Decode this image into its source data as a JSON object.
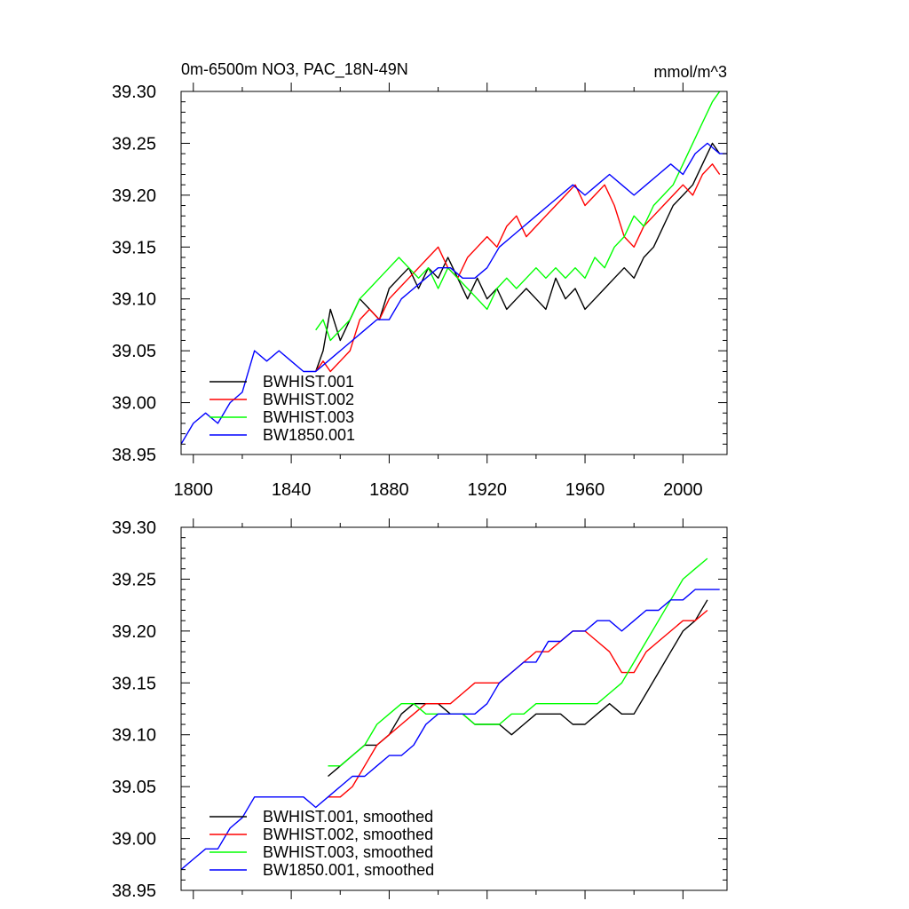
{
  "chart_data": [
    {
      "type": "line",
      "title_left": "0m-6500m NO3, PAC_18N-49N",
      "title_right": "mmol/m^3",
      "xlabel": "",
      "ylabel": "",
      "xlim": [
        1795,
        2018
      ],
      "ylim": [
        38.95,
        39.3
      ],
      "x_ticks": [
        1800,
        1840,
        1880,
        1920,
        1960,
        2000
      ],
      "x_tick_labels": [
        "1800",
        "1840",
        "1880",
        "1920",
        "1960",
        "2000"
      ],
      "y_ticks": [
        38.95,
        39.0,
        39.05,
        39.1,
        39.15,
        39.2,
        39.25,
        39.3
      ],
      "y_tick_labels": [
        "38.95",
        "39.00",
        "39.05",
        "39.10",
        "39.15",
        "39.20",
        "39.25",
        "39.30"
      ],
      "legend_position": "bottom-left",
      "series": [
        {
          "name": "BWHIST.001",
          "color": "#000000",
          "x": [
            1850,
            1853,
            1856,
            1860,
            1864,
            1868,
            1872,
            1876,
            1880,
            1884,
            1888,
            1892,
            1896,
            1900,
            1904,
            1908,
            1912,
            1916,
            1920,
            1924,
            1928,
            1932,
            1936,
            1940,
            1944,
            1948,
            1952,
            1956,
            1960,
            1964,
            1968,
            1972,
            1976,
            1980,
            1984,
            1988,
            1992,
            1996,
            2000,
            2004,
            2008,
            2012,
            2015
          ],
          "y": [
            39.03,
            39.05,
            39.09,
            39.06,
            39.08,
            39.1,
            39.09,
            39.08,
            39.11,
            39.12,
            39.13,
            39.11,
            39.13,
            39.12,
            39.14,
            39.12,
            39.1,
            39.12,
            39.1,
            39.11,
            39.09,
            39.1,
            39.11,
            39.1,
            39.09,
            39.12,
            39.1,
            39.11,
            39.09,
            39.1,
            39.11,
            39.12,
            39.13,
            39.12,
            39.14,
            39.15,
            39.17,
            39.19,
            39.2,
            39.21,
            39.23,
            39.25,
            39.24
          ]
        },
        {
          "name": "BWHIST.002",
          "color": "#ff0000",
          "x": [
            1850,
            1853,
            1856,
            1860,
            1864,
            1868,
            1872,
            1876,
            1880,
            1884,
            1888,
            1892,
            1896,
            1900,
            1904,
            1908,
            1912,
            1916,
            1920,
            1924,
            1928,
            1932,
            1936,
            1940,
            1944,
            1948,
            1952,
            1956,
            1960,
            1964,
            1968,
            1972,
            1976,
            1980,
            1984,
            1988,
            1992,
            1996,
            2000,
            2004,
            2008,
            2012,
            2015
          ],
          "y": [
            39.03,
            39.04,
            39.03,
            39.04,
            39.05,
            39.08,
            39.09,
            39.08,
            39.1,
            39.11,
            39.12,
            39.13,
            39.14,
            39.15,
            39.13,
            39.12,
            39.14,
            39.15,
            39.16,
            39.15,
            39.17,
            39.18,
            39.16,
            39.17,
            39.18,
            39.19,
            39.2,
            39.21,
            39.19,
            39.2,
            39.21,
            39.19,
            39.16,
            39.15,
            39.17,
            39.18,
            39.19,
            39.2,
            39.21,
            39.2,
            39.22,
            39.23,
            39.22
          ]
        },
        {
          "name": "BWHIST.003",
          "color": "#00ff00",
          "x": [
            1850,
            1853,
            1856,
            1860,
            1864,
            1868,
            1872,
            1876,
            1880,
            1884,
            1888,
            1892,
            1896,
            1900,
            1904,
            1908,
            1912,
            1916,
            1920,
            1924,
            1928,
            1932,
            1936,
            1940,
            1944,
            1948,
            1952,
            1956,
            1960,
            1964,
            1968,
            1972,
            1976,
            1980,
            1984,
            1988,
            1992,
            1996,
            2000,
            2004,
            2008,
            2012,
            2015
          ],
          "y": [
            39.07,
            39.08,
            39.06,
            39.07,
            39.08,
            39.1,
            39.11,
            39.12,
            39.13,
            39.14,
            39.13,
            39.12,
            39.13,
            39.11,
            39.13,
            39.12,
            39.11,
            39.1,
            39.09,
            39.11,
            39.12,
            39.11,
            39.12,
            39.13,
            39.12,
            39.13,
            39.12,
            39.13,
            39.12,
            39.14,
            39.13,
            39.15,
            39.16,
            39.18,
            39.17,
            39.19,
            39.2,
            39.21,
            39.23,
            39.25,
            39.27,
            39.29,
            39.3
          ]
        },
        {
          "name": "BW1850.001",
          "color": "#0000ff",
          "x": [
            1795,
            1800,
            1805,
            1810,
            1815,
            1820,
            1825,
            1830,
            1835,
            1840,
            1845,
            1850,
            1855,
            1860,
            1865,
            1870,
            1875,
            1880,
            1885,
            1890,
            1895,
            1900,
            1905,
            1910,
            1915,
            1920,
            1925,
            1930,
            1935,
            1940,
            1945,
            1950,
            1955,
            1960,
            1965,
            1970,
            1975,
            1980,
            1985,
            1990,
            1995,
            2000,
            2005,
            2010,
            2015,
            2018
          ],
          "y": [
            38.96,
            38.98,
            38.99,
            38.98,
            39.0,
            39.01,
            39.05,
            39.04,
            39.05,
            39.04,
            39.03,
            39.03,
            39.04,
            39.05,
            39.06,
            39.07,
            39.08,
            39.08,
            39.1,
            39.11,
            39.12,
            39.13,
            39.13,
            39.12,
            39.12,
            39.13,
            39.15,
            39.16,
            39.17,
            39.18,
            39.19,
            39.2,
            39.21,
            39.2,
            39.21,
            39.22,
            39.21,
            39.2,
            39.21,
            39.22,
            39.23,
            39.22,
            39.24,
            39.25,
            39.24,
            39.24
          ]
        }
      ]
    },
    {
      "type": "line",
      "title_left": "",
      "title_right": "",
      "xlabel": "",
      "ylabel": "",
      "xlim": [
        1795,
        2018
      ],
      "ylim": [
        38.95,
        39.3
      ],
      "x_ticks": [
        1800,
        1840,
        1880,
        1920,
        1960,
        2000
      ],
      "x_tick_labels": [],
      "y_ticks": [
        38.95,
        39.0,
        39.05,
        39.1,
        39.15,
        39.2,
        39.25,
        39.3
      ],
      "y_tick_labels": [
        "38.95",
        "39.00",
        "39.05",
        "39.10",
        "39.15",
        "39.20",
        "39.25",
        "39.30"
      ],
      "legend_position": "bottom-left",
      "series": [
        {
          "name": "BWHIST.001, smoothed",
          "color": "#000000",
          "x": [
            1855,
            1860,
            1865,
            1870,
            1875,
            1880,
            1885,
            1890,
            1895,
            1900,
            1905,
            1910,
            1915,
            1920,
            1925,
            1930,
            1935,
            1940,
            1945,
            1950,
            1955,
            1960,
            1965,
            1970,
            1975,
            1980,
            1985,
            1990,
            1995,
            2000,
            2005,
            2010
          ],
          "y": [
            39.06,
            39.07,
            39.08,
            39.09,
            39.09,
            39.1,
            39.12,
            39.13,
            39.13,
            39.13,
            39.12,
            39.12,
            39.11,
            39.11,
            39.11,
            39.1,
            39.11,
            39.12,
            39.12,
            39.12,
            39.11,
            39.11,
            39.12,
            39.13,
            39.12,
            39.12,
            39.14,
            39.16,
            39.18,
            39.2,
            39.21,
            39.23
          ]
        },
        {
          "name": "BWHIST.002, smoothed",
          "color": "#ff0000",
          "x": [
            1855,
            1860,
            1865,
            1870,
            1875,
            1880,
            1885,
            1890,
            1895,
            1900,
            1905,
            1910,
            1915,
            1920,
            1925,
            1930,
            1935,
            1940,
            1945,
            1950,
            1955,
            1960,
            1965,
            1970,
            1975,
            1980,
            1985,
            1990,
            1995,
            2000,
            2005,
            2010
          ],
          "y": [
            39.04,
            39.04,
            39.05,
            39.07,
            39.09,
            39.1,
            39.11,
            39.12,
            39.13,
            39.13,
            39.13,
            39.14,
            39.15,
            39.15,
            39.15,
            39.16,
            39.17,
            39.18,
            39.18,
            39.19,
            39.2,
            39.2,
            39.19,
            39.18,
            39.16,
            39.16,
            39.18,
            39.19,
            39.2,
            39.21,
            39.21,
            39.22
          ]
        },
        {
          "name": "BWHIST.003, smoothed",
          "color": "#00ff00",
          "x": [
            1855,
            1860,
            1865,
            1870,
            1875,
            1880,
            1885,
            1890,
            1895,
            1900,
            1905,
            1910,
            1915,
            1920,
            1925,
            1930,
            1935,
            1940,
            1945,
            1950,
            1955,
            1960,
            1965,
            1970,
            1975,
            1980,
            1985,
            1990,
            1995,
            2000,
            2005,
            2010
          ],
          "y": [
            39.07,
            39.07,
            39.08,
            39.09,
            39.11,
            39.12,
            39.13,
            39.13,
            39.12,
            39.12,
            39.12,
            39.12,
            39.11,
            39.11,
            39.11,
            39.12,
            39.12,
            39.13,
            39.13,
            39.13,
            39.13,
            39.13,
            39.13,
            39.14,
            39.15,
            39.17,
            39.19,
            39.21,
            39.23,
            39.25,
            39.26,
            39.27
          ]
        },
        {
          "name": "BW1850.001, smoothed",
          "color": "#0000ff",
          "x": [
            1795,
            1800,
            1805,
            1810,
            1815,
            1820,
            1825,
            1830,
            1835,
            1840,
            1845,
            1850,
            1855,
            1860,
            1865,
            1870,
            1875,
            1880,
            1885,
            1890,
            1895,
            1900,
            1905,
            1910,
            1915,
            1920,
            1925,
            1930,
            1935,
            1940,
            1945,
            1950,
            1955,
            1960,
            1965,
            1970,
            1975,
            1980,
            1985,
            1990,
            1995,
            2000,
            2005,
            2010,
            2015
          ],
          "y": [
            38.97,
            38.98,
            38.99,
            38.99,
            39.01,
            39.02,
            39.04,
            39.04,
            39.04,
            39.04,
            39.04,
            39.03,
            39.04,
            39.05,
            39.06,
            39.06,
            39.07,
            39.08,
            39.08,
            39.09,
            39.11,
            39.12,
            39.12,
            39.12,
            39.12,
            39.13,
            39.15,
            39.16,
            39.17,
            39.17,
            39.19,
            39.19,
            39.2,
            39.2,
            39.21,
            39.21,
            39.2,
            39.21,
            39.22,
            39.22,
            39.23,
            39.23,
            39.24,
            39.24,
            39.24
          ]
        }
      ]
    }
  ]
}
